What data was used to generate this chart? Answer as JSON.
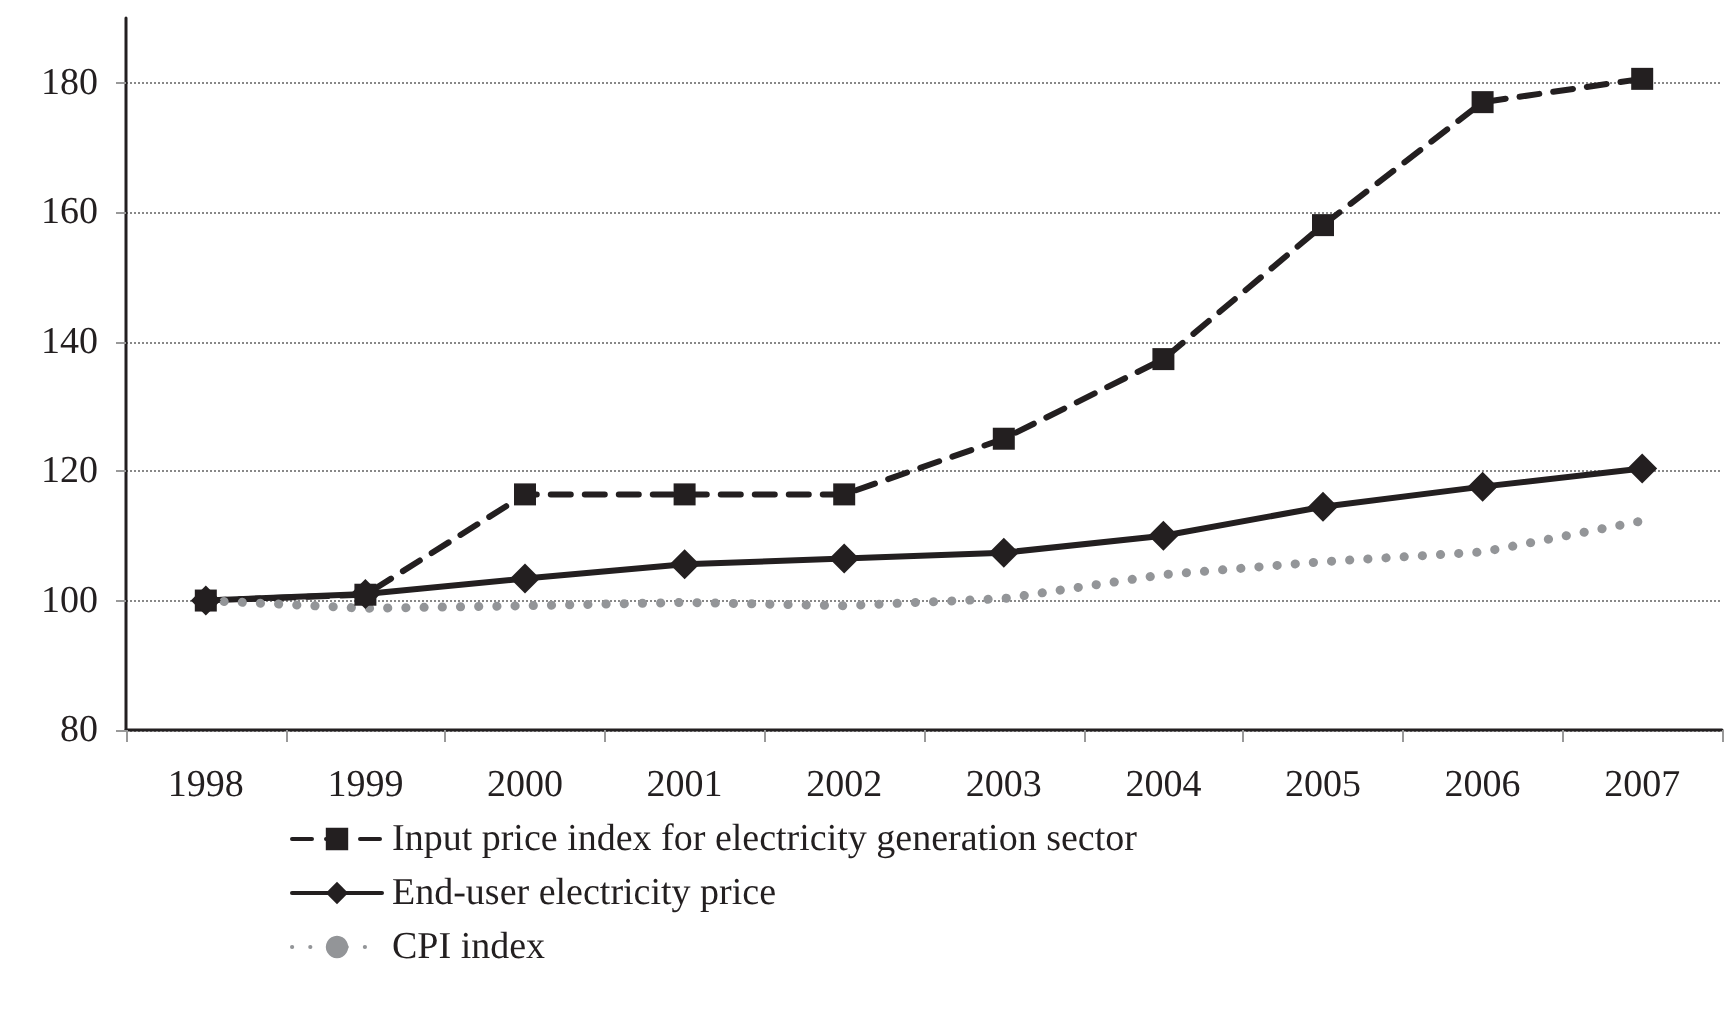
{
  "chart_data": {
    "type": "line",
    "categories": [
      "1998",
      "1999",
      "2000",
      "2001",
      "2002",
      "2003",
      "2004",
      "2005",
      "2006",
      "2007"
    ],
    "series": [
      {
        "name": "Input price index for electricity generation sector",
        "color": "#231f20",
        "marker": "square",
        "line_style": "dashed",
        "values": [
          100,
          100.9,
          116.4,
          116.4,
          116.4,
          125,
          137.3,
          158,
          177,
          180.6
        ]
      },
      {
        "name": "End-user electricity price",
        "color": "#231f20",
        "marker": "diamond",
        "line_style": "solid",
        "values": [
          100,
          101,
          103.4,
          105.6,
          106.5,
          107.4,
          110,
          114.5,
          117.6,
          120.4
        ]
      },
      {
        "name": "CPI index",
        "color": "#939598",
        "marker": "none",
        "line_style": "dotted",
        "values": [
          100,
          98.8,
          99.2,
          99.7,
          99.2,
          100.3,
          104,
          106,
          107.5,
          112.3
        ]
      }
    ],
    "ylim": [
      80,
      190
    ],
    "yticks": [
      80,
      100,
      120,
      140,
      160,
      180
    ],
    "grid": "y",
    "legend": "bottom left"
  }
}
